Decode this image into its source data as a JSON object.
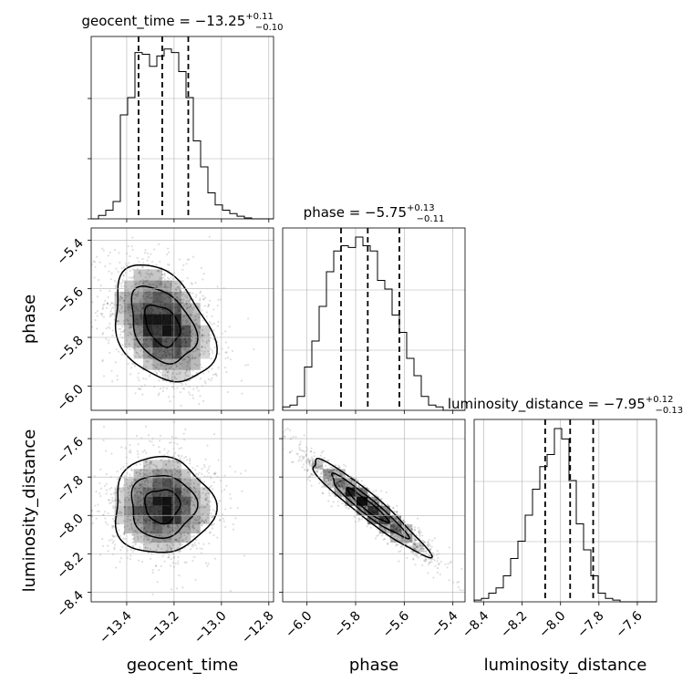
{
  "chart_data": {
    "type": "corner",
    "parameters": [
      "geocent_time",
      "phase",
      "luminosity_distance"
    ],
    "titles": [
      {
        "prefix": "geocent_time = ",
        "median": "−13.25",
        "plus": "+0.11",
        "minus": "−0.10"
      },
      {
        "prefix": "phase = ",
        "median": "−5.75",
        "plus": "+0.13",
        "minus": "−0.11"
      },
      {
        "prefix": "luminosity_distance = ",
        "median": "−7.95",
        "plus": "+0.12",
        "minus": "−0.13"
      }
    ],
    "ranges": [
      [
        -13.55,
        -12.78
      ],
      [
        -6.1,
        -5.35
      ],
      [
        -8.45,
        -7.5
      ]
    ],
    "ticks": [
      {
        "values": [
          -13.4,
          -13.2,
          -13.0,
          -12.8
        ],
        "labels": [
          "−13.4",
          "−13.2",
          "−13.0",
          "−12.8"
        ]
      },
      {
        "values": [
          -6.0,
          -5.8,
          -5.6,
          -5.4
        ],
        "labels": [
          "−6.0",
          "−5.8",
          "−5.6",
          "−5.4"
        ]
      },
      {
        "values": [
          -8.4,
          -8.2,
          -8.0,
          -7.8,
          -7.6
        ],
        "labels": [
          "−8.4",
          "−8.2",
          "−8.0",
          "−7.8",
          "−7.6"
        ]
      }
    ],
    "quantiles": [
      [
        -13.35,
        -13.25,
        -13.14
      ],
      [
        -5.86,
        -5.75,
        -5.62
      ],
      [
        -8.08,
        -7.95,
        -7.83
      ]
    ],
    "histograms": [
      {
        "start": -13.55,
        "step": 0.0308,
        "counts": [
          0,
          0.02,
          0.05,
          0.1,
          0.6,
          0.7,
          0.96,
          0.95,
          0.88,
          0.94,
          0.98,
          0.96,
          0.85,
          0.7,
          0.45,
          0.3,
          0.15,
          0.08,
          0.05,
          0.03,
          0.015,
          0.005,
          0,
          0,
          0
        ]
      },
      {
        "start": -6.1,
        "step": 0.03,
        "counts": [
          0.02,
          0.03,
          0.08,
          0.25,
          0.4,
          0.6,
          0.8,
          0.92,
          0.95,
          0.94,
          1.0,
          0.95,
          0.92,
          0.75,
          0.7,
          0.55,
          0.45,
          0.3,
          0.2,
          0.08,
          0.03,
          0.02,
          0,
          0,
          0
        ]
      },
      {
        "start": -8.45,
        "step": 0.038,
        "counts": [
          0.01,
          0.02,
          0.05,
          0.08,
          0.15,
          0.25,
          0.35,
          0.5,
          0.65,
          0.78,
          0.85,
          1.0,
          0.94,
          0.7,
          0.45,
          0.3,
          0.15,
          0.05,
          0.02,
          0.01,
          0,
          0,
          0,
          0,
          0
        ]
      }
    ],
    "correlations": {
      "phase_vs_geocent_time": -0.35,
      "luminosity_distance_vs_geocent_time": 0.0,
      "luminosity_distance_vs_phase": -0.95
    },
    "style": {
      "line_color": "#000000",
      "grid_color": "#b0b0b0",
      "quantile_dash": "dashed",
      "grid": true
    }
  }
}
